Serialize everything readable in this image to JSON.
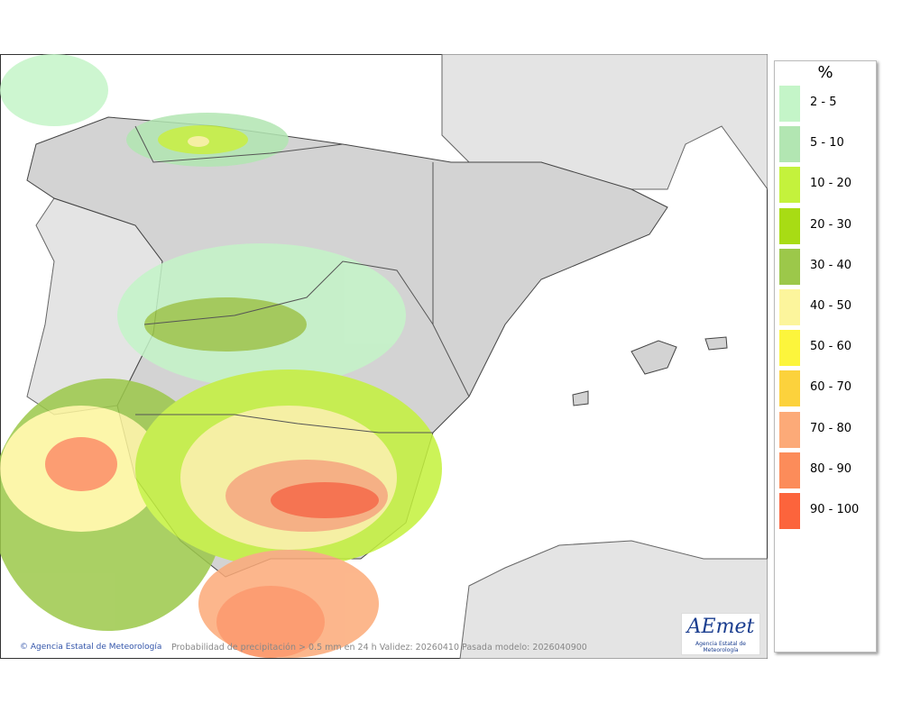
{
  "legend": {
    "title": "%",
    "items": [
      {
        "label": "2 - 5",
        "color": "#c4f5c8"
      },
      {
        "label": "5 - 10",
        "color": "#b2e6b2"
      },
      {
        "label": "10 - 20",
        "color": "#c4f23c"
      },
      {
        "label": "20 - 30",
        "color": "#a8dc14"
      },
      {
        "label": "30 - 40",
        "color": "#9cc84a"
      },
      {
        "label": "40 - 50",
        "color": "#fcf59c"
      },
      {
        "label": "50 - 60",
        "color": "#fcf53c"
      },
      {
        "label": "60 - 70",
        "color": "#fcd23c"
      },
      {
        "label": "70 - 80",
        "color": "#fcaa78"
      },
      {
        "label": "80 - 90",
        "color": "#fc8c5a"
      },
      {
        "label": "90 - 100",
        "color": "#fc643c"
      }
    ]
  },
  "footer": {
    "credit": "© Agencia Estatal de Meteorología",
    "caption": "Probabilidad de precipitación > 0.5 mm en 24 h Validez: 20260410 Pasada modelo: 2026040900"
  },
  "logo": {
    "name": "AEmet",
    "subtitle": "Agencia Estatal de Meteorología"
  }
}
